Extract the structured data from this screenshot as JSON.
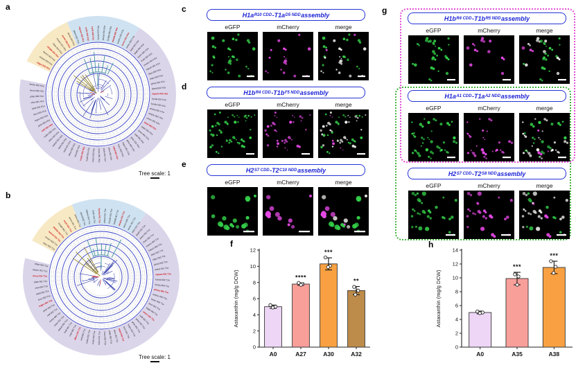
{
  "figure": {
    "panel_letters": {
      "a": "a",
      "b": "b",
      "c": "c",
      "d": "d",
      "e": "e",
      "f": "f",
      "g": "g",
      "h": "h"
    }
  },
  "trees": {
    "a": {
      "scale_label": "Tree scale: 1",
      "gap": [
        281,
        295
      ],
      "sectors": [
        {
          "from": 295,
          "to": 337,
          "color": "#f7e9c4"
        },
        {
          "from": 337,
          "to": 392,
          "color": "#cfe2f1"
        },
        {
          "from": 392,
          "to": 641,
          "color": "#dbd5ea"
        }
      ],
      "labels": [
        "stigm 002 H1a",
        "mosen 003 H1a",
        "haloch 002 H1a",
        "FK506 001 H1a",
        "rifam 004 H1a",
        "mosen 001 H1a",
        "aureo 002 H1a",
        "janna 002 H1a",
        "pland 001 H1a",
        "nigram 002 H1a",
        "eryth 001 H1a",
        "eryth 002 H1a",
        "kynda 003 H1a",
        "phesa 002 H1a",
        "FK506 002 H1a",
        "PK506 001 H1a",
        "amphu 002 H1a",
        "aureo 001 H1a",
        "venez 002 H1a",
        "teich 001 H1a",
        "staph 002 H1a",
        "avern 001 H1a",
        "chalc 002 H1a",
        "mosen 004 H1a",
        "haloch 001 H1a",
        "rifam 002 H1a",
        "rifam 003 H1a",
        "janna 001 H1a",
        "pland 002 H1a",
        "nigram 001 H1a",
        "kynda 001 H1a",
        "kynda 002 H1a",
        "phesa 001 H1a",
        "amphu 001 H1a",
        "venez 001 H1a",
        "teich 002 H1a",
        "staph 001 H1a",
        "avern 002 H1a",
        "cattl 002 H1a",
        "grise 001 H1a",
        "grise 002 H1a",
        "hygro 001 H1a",
        "linco 002 H1a",
        "natal 001 H1a",
        "oliva 002 H1a",
        "plate 001 H1a",
        "rimos 001 H1a",
        "roseo 002 H1a",
        "scabi 001 H1a",
        "tsuku 002 H1a",
        "virid 001 H1a",
        "albus 002 H1a",
        "coeli 001 H1a",
        "fradi 002 H1a",
        "ambof 001 H1a",
        "clavu 002 H1a",
        "nodos 001 H1a",
        "cattl 001 H1a",
        "grise 003 H1a",
        "hygro 002 H1a",
        "linco 001 H1a",
        "natal 002 H1a",
        "oliva 001 H1a",
        "plate 002 H1a",
        "rimos 002 H1a",
        "mosen 002 H1a"
      ],
      "red": [
        0,
        3,
        6,
        9,
        10,
        11,
        15,
        17,
        29,
        35,
        43,
        49,
        57
      ]
    },
    "b": {
      "scale_label": "Tree scale: 1",
      "gap": [
        284,
        298
      ],
      "sectors": [
        {
          "from": 298,
          "to": 338,
          "color": "#f7e9c4"
        },
        {
          "from": 338,
          "to": 395,
          "color": "#cfe2f1"
        },
        {
          "from": 395,
          "to": 644,
          "color": "#dbd5ea"
        }
      ],
      "labels": [
        "rifam 003 T1a",
        "mosen 002 T1a",
        "haloch 001 T1a",
        "PK506 002 T1a",
        "FK506 001 T1a",
        "eryth 001 T1a",
        "aureo 001 T1a",
        "janna 001 T1a",
        "pland 002 T1a",
        "nigram 002 T1a",
        "eryth 002 T1a",
        "kynda 001 T1a",
        "phesa 001 T1a",
        "FK506 002 T1a",
        "PK506 001 T1a",
        "amphu 001 T1a",
        "aureo 002 T1a",
        "venez 001 T1a",
        "teich 002 T1a",
        "staph 001 T1a",
        "avern 002 T1a",
        "chalc 001 T1a",
        "mosen 003 T1a",
        "haloch 002 T1a",
        "rifam 001 T1a",
        "rifam 002 T1a",
        "janna 002 T1a",
        "pland 001 T1a",
        "nigram 001 T1a",
        "kynda 002 T1a",
        "kynda 003 T1a",
        "phesa 002 T1a",
        "amphu 002 T1a",
        "venez 002 T1a",
        "teich 001 T1a",
        "staph 002 T1a",
        "avern 001 T1a",
        "cattl 001 T1a",
        "grise 002 T1a",
        "grise 001 T1a",
        "hygro 002 T1a",
        "linco 001 T1a",
        "natal 002 T1a",
        "oliva 001 T1a",
        "plate 002 T1a",
        "rimos 002 T1a",
        "roseo 001 T1a",
        "scabi 002 T1a",
        "tsuku 001 T1a",
        "virid 002 T1a",
        "albus 001 T1a",
        "coeli 002 T1a",
        "fradi 001 T1a",
        "ambof 002 T1a",
        "clavu 001 T1a",
        "nodos 002 T1a",
        "cattl 002 T1a",
        "grise 003 T1a",
        "hygro 001 T1a",
        "linco 002 T1a",
        "natal 001 T1a",
        "oliva 002 T1a",
        "plate 001 T1a",
        "rimos 001 T1a",
        "mosen 001 T1a",
        "stigm 001 T1a"
      ],
      "red": [
        2,
        3,
        5,
        11,
        15,
        28,
        31,
        36,
        42,
        50,
        58,
        63
      ]
    }
  },
  "assemblies": {
    "c": {
      "title": [
        [
          "H1a",
          0
        ],
        [
          "R10 CDD",
          1
        ],
        [
          "-T1a",
          0
        ],
        [
          "D5 NDD",
          1
        ],
        [
          " assembly",
          0
        ]
      ],
      "columns": [
        "eGFP",
        "mCherry",
        "merge"
      ],
      "dots": {
        "count": 26,
        "size": 1.6,
        "seed": 11,
        "bar": 11
      }
    },
    "d": {
      "title": [
        [
          "H1b",
          0
        ],
        [
          "R4 CDD",
          1
        ],
        [
          "-T1b",
          0
        ],
        [
          "F5 NDD",
          1
        ],
        [
          " assembly",
          0
        ]
      ],
      "columns": [
        "eGFP",
        "mCherry",
        "merge"
      ],
      "dots": {
        "count": 44,
        "size": 1.5,
        "seed": 22,
        "bar": 12
      }
    },
    "e": {
      "title": [
        [
          "H2",
          0
        ],
        [
          "S7 CDD",
          1
        ],
        [
          "-T2",
          0
        ],
        [
          "C10 NDD",
          1
        ],
        [
          " assembly",
          0
        ]
      ],
      "columns": [
        "eGFP",
        "mCherry",
        "merge"
      ],
      "dots": {
        "count": 20,
        "size": 2.7,
        "seed": 33,
        "bar": 16
      }
    },
    "g1": {
      "title": [
        [
          "H1b",
          0
        ],
        [
          "R4 CDD",
          1
        ],
        [
          "-T1b",
          0
        ],
        [
          "R5 NDD",
          1
        ],
        [
          " assembly",
          0
        ]
      ],
      "columns": [
        "eGFP",
        "mCherry",
        "merge"
      ],
      "dots": {
        "count": 24,
        "size": 1.6,
        "seed": 44,
        "bar": 12
      }
    },
    "g2": {
      "title": [
        [
          "H1a",
          0
        ],
        [
          "A1 CDD",
          1
        ],
        [
          "-T1a",
          0
        ],
        [
          "A2 NDD",
          1
        ],
        [
          " assembly",
          0
        ]
      ],
      "columns": [
        "eGFP",
        "mCherry",
        "merge"
      ],
      "dots": {
        "count": 38,
        "size": 1.6,
        "seed": 55,
        "bar": 12
      }
    },
    "g3": {
      "title": [
        [
          "H2",
          0
        ],
        [
          "S7 CDD",
          1
        ],
        [
          "-T2",
          0
        ],
        [
          "S8 NDD",
          1
        ],
        [
          " assembly",
          0
        ]
      ],
      "columns": [
        "eGFP",
        "mCherry",
        "merge"
      ],
      "dots": {
        "count": 26,
        "size": 2.1,
        "seed": 66,
        "bar": 14
      }
    }
  },
  "chart_data": [
    {
      "id": "f",
      "type": "bar",
      "categories": [
        "A0",
        "A27",
        "A30",
        "A32"
      ],
      "values": [
        5.0,
        7.8,
        10.3,
        7.0
      ],
      "errors": [
        0.2,
        0.15,
        0.75,
        0.5
      ],
      "points": [
        [
          5.2,
          5.0,
          4.9
        ],
        [
          7.95,
          7.8,
          7.7
        ],
        [
          11.1,
          10.05,
          9.9
        ],
        [
          7.45,
          7.0,
          6.5
        ]
      ],
      "sig": [
        "",
        "****",
        "***",
        "**"
      ],
      "colors": [
        "#eed6f6",
        "#f99f9a",
        "#f9a142",
        "#bd8b4a"
      ],
      "title": "",
      "xlabel": "",
      "ylabel": "Astaxanthin (mg/g DCW)",
      "ylim": [
        0,
        12
      ],
      "ytick": 2
    },
    {
      "id": "h",
      "type": "bar",
      "categories": [
        "A0",
        "A35",
        "A38"
      ],
      "values": [
        5.0,
        9.9,
        11.5
      ],
      "errors": [
        0.2,
        0.9,
        0.9
      ],
      "points": [
        [
          5.15,
          5.0,
          4.9
        ],
        [
          10.5,
          10.2,
          9.0
        ],
        [
          12.4,
          11.6,
          10.7
        ]
      ],
      "sig": [
        "",
        "***",
        "***"
      ],
      "colors": [
        "#eed6f6",
        "#f99f9a",
        "#f9a142"
      ],
      "title": "",
      "xlabel": "",
      "ylabel": "Astaxanthin (mg/g DCW)",
      "ylim": [
        0,
        14
      ],
      "ytick": 2
    }
  ],
  "colors": {
    "title_blue": "#1d23d6",
    "box_magenta": "#e44fd4",
    "box_green": "#43b13f",
    "egfp_green": "#35d24a",
    "mcherry_magenta": "#e448e4",
    "merge_white": "#f3f3ef"
  }
}
